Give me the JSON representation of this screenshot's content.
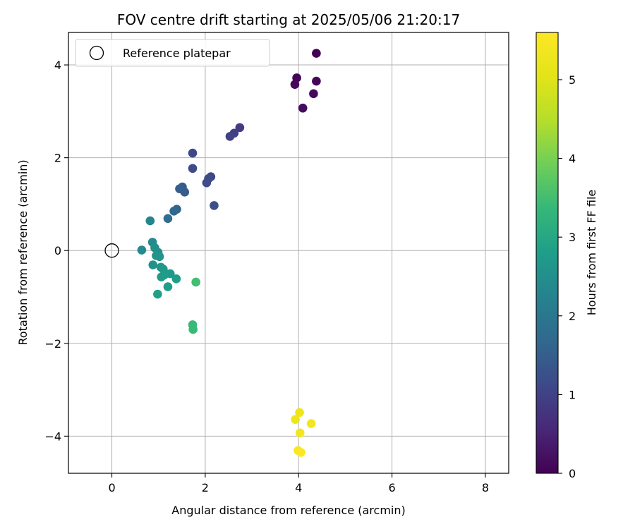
{
  "chart_data": {
    "type": "scatter",
    "title": "FOV centre drift starting at 2025/05/06 21:20:17",
    "xlabel": "Angular distance from reference (arcmin)",
    "ylabel": "Rotation from reference (arcmin)",
    "xlim": [
      -0.93,
      8.5
    ],
    "ylim": [
      -4.8,
      4.7
    ],
    "x_ticks": [
      "0",
      "2",
      "4",
      "6",
      "8"
    ],
    "y_ticks": [
      "−4",
      "−2",
      "0",
      "2",
      "4"
    ],
    "grid": true,
    "legend": {
      "position": "top-left",
      "label": "Reference platepar"
    },
    "reference_point": {
      "x": 0,
      "y": 0
    },
    "colorbar": {
      "label": "Hours from first FF file",
      "range": [
        0,
        5.6
      ],
      "ticks": [
        "0",
        "1",
        "2",
        "3",
        "4",
        "5"
      ],
      "colormap": "viridis"
    },
    "points": [
      {
        "x": 4.38,
        "y": 4.25,
        "c": 0.0
      },
      {
        "x": 3.96,
        "y": 3.72,
        "c": 0.05
      },
      {
        "x": 3.92,
        "y": 3.58,
        "c": 0.1
      },
      {
        "x": 4.38,
        "y": 3.65,
        "c": 0.08
      },
      {
        "x": 4.32,
        "y": 3.38,
        "c": 0.12
      },
      {
        "x": 4.09,
        "y": 3.07,
        "c": 0.15
      },
      {
        "x": 2.74,
        "y": 2.65,
        "c": 0.9
      },
      {
        "x": 2.62,
        "y": 2.53,
        "c": 0.95
      },
      {
        "x": 2.53,
        "y": 2.46,
        "c": 1.0
      },
      {
        "x": 1.73,
        "y": 2.1,
        "c": 1.1
      },
      {
        "x": 1.73,
        "y": 1.77,
        "c": 1.15
      },
      {
        "x": 2.12,
        "y": 1.59,
        "c": 1.1
      },
      {
        "x": 2.07,
        "y": 1.55,
        "c": 1.15
      },
      {
        "x": 2.03,
        "y": 1.46,
        "c": 1.2
      },
      {
        "x": 2.19,
        "y": 0.97,
        "c": 1.25
      },
      {
        "x": 1.51,
        "y": 1.37,
        "c": 1.4
      },
      {
        "x": 1.45,
        "y": 1.33,
        "c": 1.5
      },
      {
        "x": 1.56,
        "y": 1.26,
        "c": 1.45
      },
      {
        "x": 1.39,
        "y": 0.89,
        "c": 1.6
      },
      {
        "x": 1.33,
        "y": 0.85,
        "c": 1.7
      },
      {
        "x": 1.2,
        "y": 0.69,
        "c": 1.8
      },
      {
        "x": 0.82,
        "y": 0.64,
        "c": 2.3
      },
      {
        "x": 0.64,
        "y": 0.01,
        "c": 2.4
      },
      {
        "x": 0.87,
        "y": 0.18,
        "c": 2.4
      },
      {
        "x": 0.92,
        "y": 0.06,
        "c": 2.5
      },
      {
        "x": 0.99,
        "y": -0.04,
        "c": 2.5
      },
      {
        "x": 0.95,
        "y": -0.11,
        "c": 2.6
      },
      {
        "x": 1.02,
        "y": -0.13,
        "c": 2.6
      },
      {
        "x": 0.88,
        "y": -0.31,
        "c": 2.55
      },
      {
        "x": 1.05,
        "y": -0.36,
        "c": 2.65
      },
      {
        "x": 1.1,
        "y": -0.4,
        "c": 2.7
      },
      {
        "x": 1.25,
        "y": -0.5,
        "c": 2.7
      },
      {
        "x": 1.12,
        "y": -0.53,
        "c": 2.75
      },
      {
        "x": 1.06,
        "y": -0.57,
        "c": 2.75
      },
      {
        "x": 1.38,
        "y": -0.61,
        "c": 2.8
      },
      {
        "x": 1.2,
        "y": -0.78,
        "c": 2.8
      },
      {
        "x": 0.98,
        "y": -0.94,
        "c": 2.85
      },
      {
        "x": 1.8,
        "y": -0.68,
        "c": 3.5
      },
      {
        "x": 1.73,
        "y": -1.6,
        "c": 3.4
      },
      {
        "x": 1.74,
        "y": -1.7,
        "c": 3.4
      },
      {
        "x": 4.02,
        "y": -3.49,
        "c": 5.3
      },
      {
        "x": 3.93,
        "y": -3.64,
        "c": 5.3
      },
      {
        "x": 4.27,
        "y": -3.73,
        "c": 5.4
      },
      {
        "x": 4.03,
        "y": -3.93,
        "c": 5.4
      },
      {
        "x": 3.99,
        "y": -4.31,
        "c": 5.5
      },
      {
        "x": 4.05,
        "y": -4.35,
        "c": 5.55
      }
    ]
  }
}
